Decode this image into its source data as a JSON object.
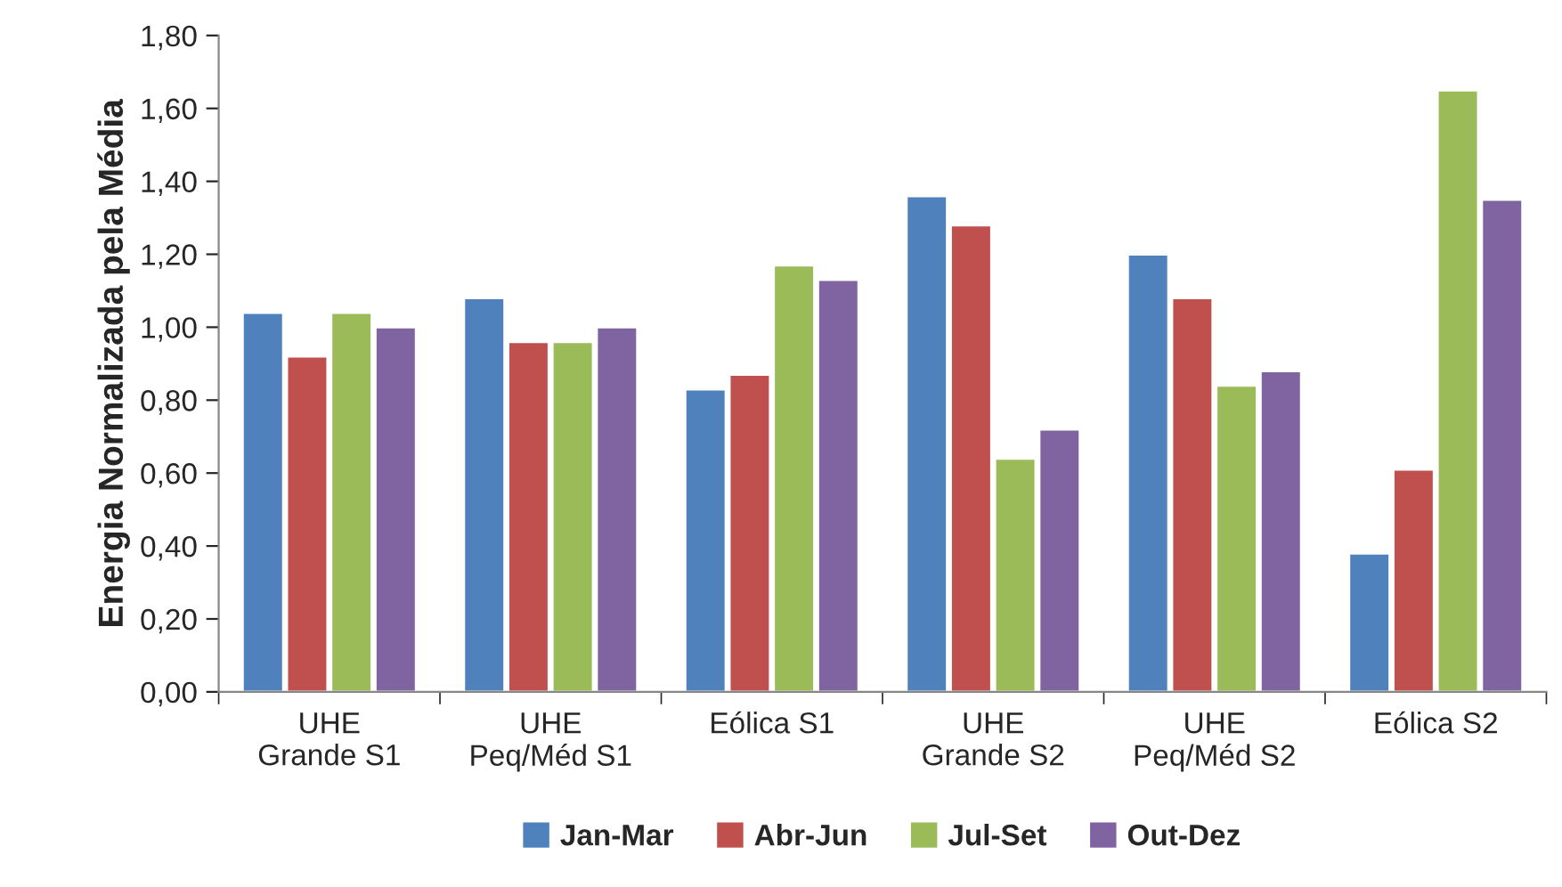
{
  "chart_data": {
    "type": "bar",
    "ylabel": "Energia Normalizada pela Média",
    "categories": [
      "UHE\nGrande S1",
      "UHE\nPeq/Méd S1",
      "Eólica S1",
      "UHE\nGrande S2",
      "UHE\nPeq/Méd S2",
      "Eólica S2"
    ],
    "series": [
      {
        "name": "Jan-Mar",
        "color": "#4f81bd",
        "values": [
          1.04,
          1.08,
          0.83,
          1.36,
          1.2,
          0.38
        ]
      },
      {
        "name": "Abr-Jun",
        "color": "#c0504d",
        "values": [
          0.92,
          0.96,
          0.87,
          1.28,
          1.08,
          0.61
        ]
      },
      {
        "name": "Jul-Set",
        "color": "#9bbb59",
        "values": [
          1.04,
          0.96,
          1.17,
          0.64,
          0.84,
          1.65
        ]
      },
      {
        "name": "Out-Dez",
        "color": "#8064a2",
        "values": [
          1.0,
          1.0,
          1.13,
          0.72,
          0.88,
          1.35
        ]
      }
    ],
    "ylim": [
      0,
      1.8
    ],
    "yticks": [
      {
        "value": 0,
        "label": "0,00"
      },
      {
        "value": 0.2,
        "label": "0,20"
      },
      {
        "value": 0.4,
        "label": "0,40"
      },
      {
        "value": 0.6,
        "label": "0,60"
      },
      {
        "value": 0.8,
        "label": "0,80"
      },
      {
        "value": 1.0,
        "label": "1,00"
      },
      {
        "value": 1.2,
        "label": "1,20"
      },
      {
        "value": 1.4,
        "label": "1,40"
      },
      {
        "value": 1.6,
        "label": "1,60"
      },
      {
        "value": 1.8,
        "label": "1,80"
      }
    ],
    "grid": false,
    "legend": "bottom"
  }
}
